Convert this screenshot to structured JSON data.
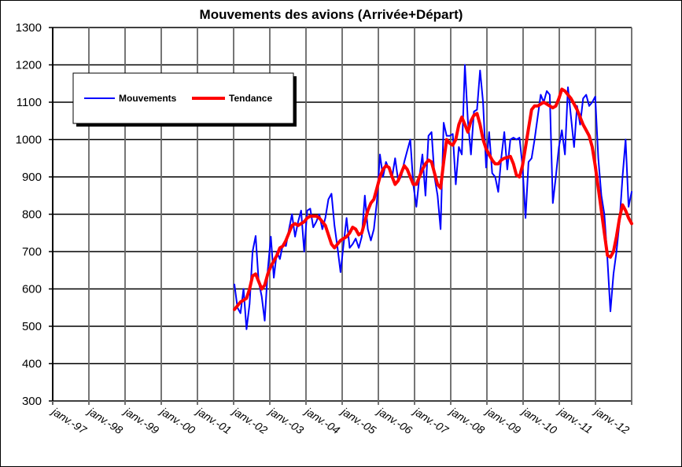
{
  "chart_data": {
    "type": "line",
    "title": "Mouvements des avions (Arrivée+Départ)",
    "xlabel": "",
    "ylabel": "",
    "ylim": [
      300,
      1300
    ],
    "yticks": [
      300,
      400,
      500,
      600,
      700,
      800,
      900,
      1000,
      1100,
      1200,
      1300
    ],
    "xtick_labels": [
      "janv.-97",
      "janv.-98",
      "janv.-99",
      "janv.-00",
      "janv.-01",
      "janv.-02",
      "janv.-03",
      "janv.-04",
      "janv.-05",
      "janv.-06",
      "janv.-07",
      "janv.-08",
      "janv.-09",
      "janv.-10",
      "janv.-11",
      "janv.-12"
    ],
    "x_start": "janv.-02",
    "x_frequency": "monthly",
    "grid": true,
    "legend_position": "top-left",
    "colors": {
      "Mouvements": "#0000ff",
      "Tendance": "#ff0000"
    },
    "series": [
      {
        "name": "Mouvements",
        "values": [
          612,
          550,
          535,
          600,
          492,
          560,
          700,
          742,
          620,
          580,
          515,
          650,
          740,
          630,
          700,
          680,
          720,
          715,
          760,
          800,
          740,
          780,
          810,
          700,
          810,
          815,
          765,
          780,
          800,
          760,
          790,
          840,
          855,
          770,
          710,
          645,
          720,
          790,
          710,
          720,
          735,
          710,
          740,
          850,
          760,
          730,
          760,
          835,
          960,
          900,
          940,
          920,
          900,
          950,
          890,
          900,
          940,
          970,
          1000,
          880,
          820,
          900,
          960,
          850,
          1010,
          1020,
          900,
          850,
          760,
          1045,
          1010,
          1010,
          1015,
          880,
          980,
          960,
          1200,
          1050,
          960,
          1075,
          1080,
          1185,
          1100,
          925,
          1020,
          910,
          900,
          860,
          950,
          1020,
          920,
          1000,
          1005,
          1000,
          1005,
          930,
          790,
          940,
          950,
          1000,
          1060,
          1120,
          1100,
          1130,
          1120,
          830,
          900,
          980,
          1025,
          960,
          1140,
          1060,
          980,
          1090,
          1040,
          1110,
          1120,
          1090,
          1100,
          1115,
          950,
          850,
          800,
          680,
          540,
          640,
          700,
          780,
          900,
          1000,
          820,
          860
        ]
      },
      {
        "name": "Tendance",
        "values": [
          545,
          555,
          565,
          570,
          575,
          600,
          635,
          640,
          620,
          600,
          610,
          640,
          660,
          675,
          690,
          710,
          715,
          730,
          750,
          770,
          775,
          770,
          775,
          780,
          790,
          795,
          795,
          795,
          790,
          780,
          770,
          745,
          720,
          710,
          720,
          730,
          735,
          740,
          750,
          765,
          760,
          745,
          750,
          780,
          810,
          830,
          840,
          870,
          900,
          920,
          930,
          925,
          900,
          880,
          890,
          910,
          930,
          920,
          900,
          880,
          880,
          900,
          920,
          935,
          945,
          940,
          910,
          880,
          870,
          940,
          1000,
          990,
          985,
          1000,
          1040,
          1060,
          1040,
          1020,
          1050,
          1065,
          1070,
          1040,
          1000,
          975,
          960,
          945,
          935,
          935,
          945,
          950,
          952,
          955,
          935,
          905,
          900,
          930,
          980,
          1030,
          1080,
          1090,
          1090,
          1095,
          1100,
          1095,
          1090,
          1085,
          1090,
          1110,
          1135,
          1130,
          1120,
          1110,
          1095,
          1080,
          1060,
          1040,
          1025,
          1010,
          980,
          930,
          870,
          810,
          750,
          690,
          685,
          700,
          740,
          790,
          825,
          810,
          790,
          775
        ]
      }
    ]
  }
}
